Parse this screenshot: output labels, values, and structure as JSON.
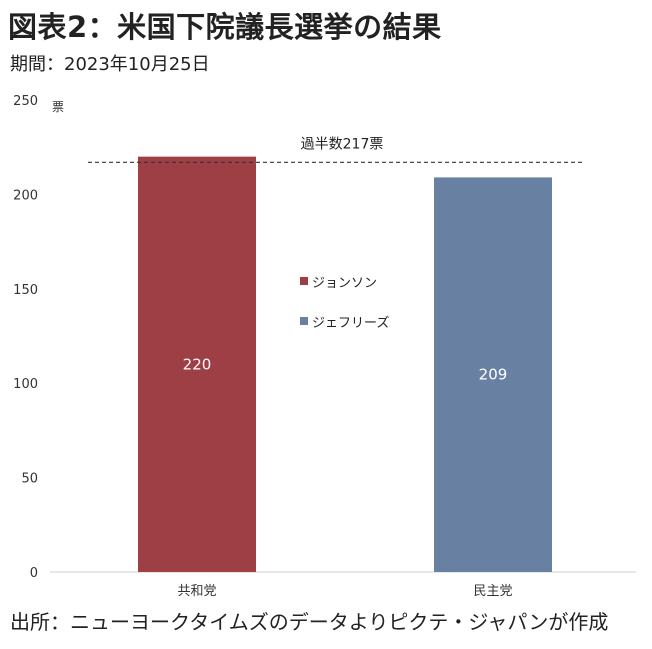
{
  "title": "図表2：米国下院議長選挙の結果",
  "period": "期間：2023年10月25日",
  "source": "出所：ニューヨークタイムズのデータよりピクテ・ジャパンが作成",
  "chart_data": {
    "type": "bar",
    "categories": [
      "共和党",
      "民主党"
    ],
    "values": [
      220,
      209
    ],
    "colors": [
      "#9E3E45",
      "#6881A3"
    ],
    "ylabel": "票",
    "ylim": [
      0,
      250
    ],
    "yticks": [
      0,
      50,
      100,
      150,
      200,
      250
    ],
    "reference_line": {
      "value": 217,
      "label": "過半数217票",
      "style": "dashed"
    },
    "legend": [
      {
        "name": "ジョンソン",
        "color": "#9E3E45"
      },
      {
        "name": "ジェフリーズ",
        "color": "#6881A3"
      }
    ],
    "legend_position": "center",
    "grid": false
  }
}
